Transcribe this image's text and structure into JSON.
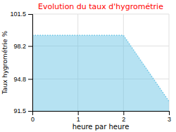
{
  "chart_data": {
    "type": "area",
    "title": "Evolution du taux d'hygrométrie",
    "xlabel": "heure par heure",
    "ylabel": "Taux hygrométrie %",
    "x": [
      0,
      2,
      3
    ],
    "series": [
      {
        "values": [
          99.3,
          99.3,
          92.5
        ],
        "color": "#6ec6e6",
        "line_style": "dotted"
      }
    ],
    "xlim": [
      0,
      3
    ],
    "ylim": [
      91.5,
      101.5
    ],
    "xticks": [
      0,
      1,
      2,
      3
    ],
    "yticks": [
      91.5,
      94.8,
      98.2,
      101.5
    ],
    "grid": true
  }
}
